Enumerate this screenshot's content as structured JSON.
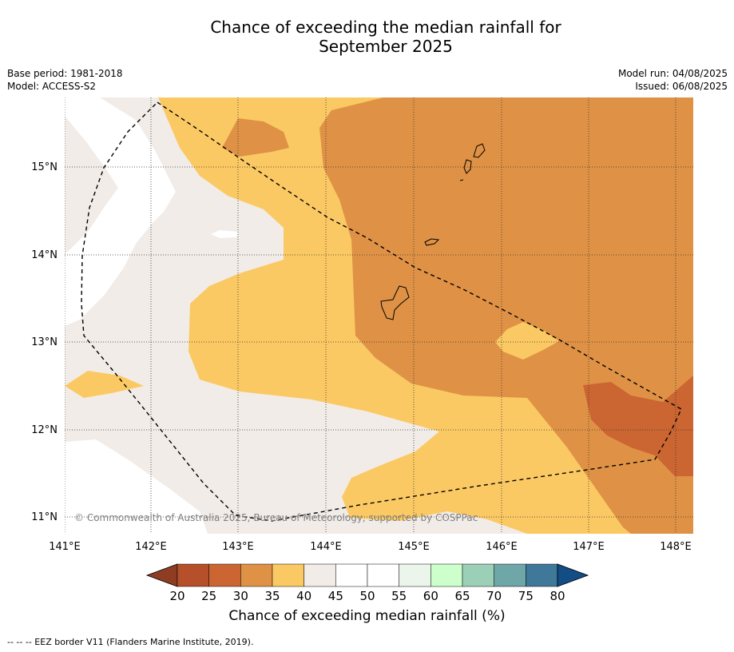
{
  "title_line1": "Chance of exceeding the median rainfall for",
  "title_line2": "September 2025",
  "base_period": "Base period: 1981-2018",
  "model": "Model: ACCESS-S2",
  "model_run": "Model run: 04/08/2025",
  "issued": "Issued: 06/08/2025",
  "copyright": "© Commonwealth of Australia 2025, Bureau of Meteorology, supported by COSPPac",
  "lon_ticks": [
    "141°E",
    "142°E",
    "143°E",
    "144°E",
    "145°E",
    "146°E",
    "147°E",
    "148°E"
  ],
  "lat_ticks": [
    "15°N",
    "14°N",
    "13°N",
    "12°N",
    "11°N"
  ],
  "colorbar": {
    "title": "Chance of exceeding median rainfall (%)",
    "labels": [
      "20",
      "25",
      "30",
      "35",
      "40",
      "45",
      "50",
      "55",
      "60",
      "65",
      "70",
      "75",
      "80"
    ],
    "colors": [
      "#b5502a",
      "#cb6532",
      "#df9245",
      "#fbc963",
      "#f1ece7",
      "#ffffff",
      "#ffffff",
      "#ebf5eb",
      "#ccffcc",
      "#9ccfb8",
      "#6fa6a8",
      "#3f7899"
    ],
    "under_color": "#8f3d22",
    "over_color": "#124d86"
  },
  "footnote": "-- -- -- EEZ border V11 (Flanders Marine Institute, 2019)."
}
